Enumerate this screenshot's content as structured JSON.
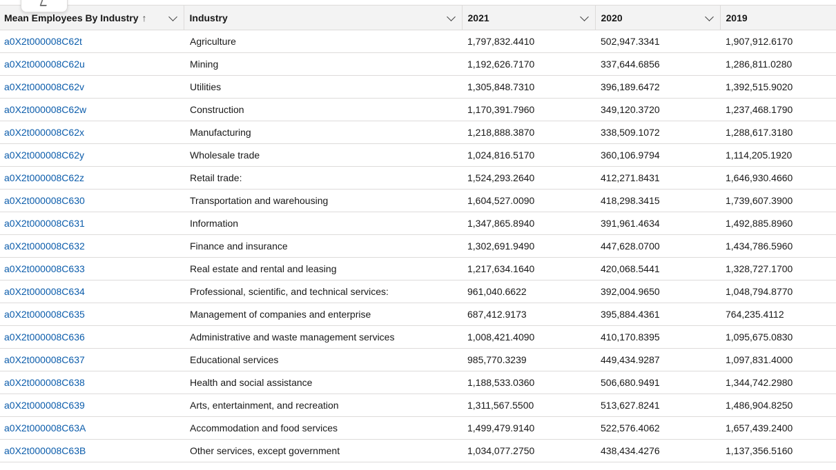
{
  "columns": [
    {
      "key": "name",
      "label": "Mean Employees By Industry",
      "sort_indicator": "↑"
    },
    {
      "key": "industry",
      "label": "Industry"
    },
    {
      "key": "y2021",
      "label": "2021"
    },
    {
      "key": "y2020",
      "label": "2020"
    },
    {
      "key": "y2019",
      "label": "2019"
    }
  ],
  "colors": {
    "link": "#0b5cab",
    "header_bg": "#f3f3f3",
    "border": "#dddbda",
    "text": "#181818"
  },
  "rows": [
    {
      "name": "a0X2t000008C62t",
      "industry": "Agriculture",
      "y2021": "1,797,832.4410",
      "y2020": "502,947.3341",
      "y2019": "1,907,912.6170"
    },
    {
      "name": "a0X2t000008C62u",
      "industry": "Mining",
      "y2021": "1,192,626.7170",
      "y2020": "337,644.6856",
      "y2019": "1,286,811.0280"
    },
    {
      "name": "a0X2t000008C62v",
      "industry": "Utilities",
      "y2021": "1,305,848.7310",
      "y2020": "396,189.6472",
      "y2019": "1,392,515.9020"
    },
    {
      "name": "a0X2t000008C62w",
      "industry": "Construction",
      "y2021": "1,170,391.7960",
      "y2020": "349,120.3720",
      "y2019": "1,237,468.1790"
    },
    {
      "name": "a0X2t000008C62x",
      "industry": "Manufacturing",
      "y2021": "1,218,888.3870",
      "y2020": "338,509.1072",
      "y2019": "1,288,617.3180"
    },
    {
      "name": "a0X2t000008C62y",
      "industry": "Wholesale trade",
      "y2021": "1,024,816.5170",
      "y2020": "360,106.9794",
      "y2019": "1,114,205.1920"
    },
    {
      "name": "a0X2t000008C62z",
      "industry": "Retail trade:",
      "y2021": "1,524,293.2640",
      "y2020": "412,271.8431",
      "y2019": "1,646,930.4660"
    },
    {
      "name": "a0X2t000008C630",
      "industry": "Transportation and warehousing",
      "y2021": "1,604,527.0090",
      "y2020": "418,298.3415",
      "y2019": "1,739,607.3900"
    },
    {
      "name": "a0X2t000008C631",
      "industry": "Information",
      "y2021": "1,347,865.8940",
      "y2020": "391,961.4634",
      "y2019": "1,492,885.8960"
    },
    {
      "name": "a0X2t000008C632",
      "industry": "Finance and insurance",
      "y2021": "1,302,691.9490",
      "y2020": "447,628.0700",
      "y2019": "1,434,786.5960"
    },
    {
      "name": "a0X2t000008C633",
      "industry": "Real estate and rental and leasing",
      "y2021": "1,217,634.1640",
      "y2020": "420,068.5441",
      "y2019": "1,328,727.1700"
    },
    {
      "name": "a0X2t000008C634",
      "industry": "Professional, scientific, and technical services:",
      "y2021": "961,040.6622",
      "y2020": "392,004.9650",
      "y2019": "1,048,794.8770"
    },
    {
      "name": "a0X2t000008C635",
      "industry": "Management of companies and enterprise",
      "y2021": "687,412.9173",
      "y2020": "395,884.4361",
      "y2019": "764,235.4112"
    },
    {
      "name": "a0X2t000008C636",
      "industry": "Administrative and waste management services",
      "y2021": "1,008,421.4090",
      "y2020": "410,170.8395",
      "y2019": "1,095,675.0830"
    },
    {
      "name": "a0X2t000008C637",
      "industry": "Educational services",
      "y2021": "985,770.3239",
      "y2020": "449,434.9287",
      "y2019": "1,097,831.4000"
    },
    {
      "name": "a0X2t000008C638",
      "industry": "Health and social assistance",
      "y2021": "1,188,533.0360",
      "y2020": "506,680.9491",
      "y2019": "1,344,742.2980"
    },
    {
      "name": "a0X2t000008C639",
      "industry": "Arts, entertainment, and recreation",
      "y2021": "1,311,567.5500",
      "y2020": "513,627.8241",
      "y2019": "1,486,904.8250"
    },
    {
      "name": "a0X2t000008C63A",
      "industry": "Accommodation and food services",
      "y2021": "1,499,479.9140",
      "y2020": "522,576.4062",
      "y2019": "1,657,439.2400"
    },
    {
      "name": "a0X2t000008C63B",
      "industry": "Other services, except government",
      "y2021": "1,034,077.2750",
      "y2020": "438,434.4276",
      "y2019": "1,137,356.5160"
    }
  ]
}
